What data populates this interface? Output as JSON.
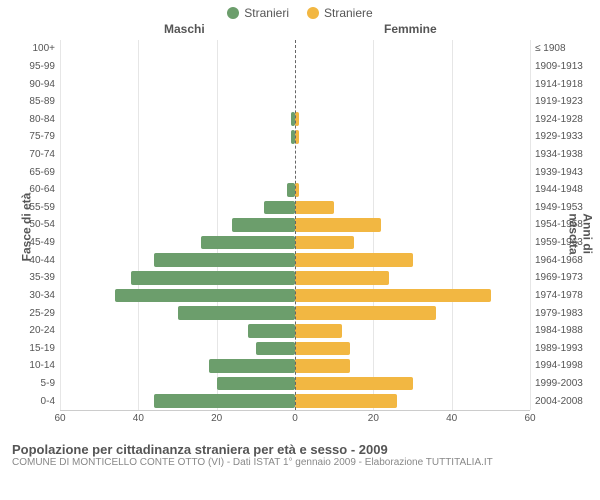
{
  "legend": {
    "male": "Stranieri",
    "female": "Straniere"
  },
  "columns": {
    "left": "Maschi",
    "right": "Femmine"
  },
  "axis_titles": {
    "left": "Fasce di età",
    "right": "Anni di nascita"
  },
  "colors": {
    "male": "#6c9e6c",
    "female": "#f2b742",
    "grid": "#e6e6e6",
    "center": "#666666",
    "bg": "#ffffff"
  },
  "x": {
    "max": 60,
    "ticks": [
      60,
      40,
      20,
      0,
      20,
      40,
      60
    ]
  },
  "rows": [
    {
      "age": "100+",
      "year": "≤ 1908",
      "m": 0,
      "f": 0
    },
    {
      "age": "95-99",
      "year": "1909-1913",
      "m": 0,
      "f": 0
    },
    {
      "age": "90-94",
      "year": "1914-1918",
      "m": 0,
      "f": 0
    },
    {
      "age": "85-89",
      "year": "1919-1923",
      "m": 0,
      "f": 0
    },
    {
      "age": "80-84",
      "year": "1924-1928",
      "m": 1,
      "f": 1
    },
    {
      "age": "75-79",
      "year": "1929-1933",
      "m": 1,
      "f": 1
    },
    {
      "age": "70-74",
      "year": "1934-1938",
      "m": 0,
      "f": 0
    },
    {
      "age": "65-69",
      "year": "1939-1943",
      "m": 0,
      "f": 0
    },
    {
      "age": "60-64",
      "year": "1944-1948",
      "m": 2,
      "f": 1
    },
    {
      "age": "55-59",
      "year": "1949-1953",
      "m": 8,
      "f": 10
    },
    {
      "age": "50-54",
      "year": "1954-1958",
      "m": 16,
      "f": 22
    },
    {
      "age": "45-49",
      "year": "1959-1963",
      "m": 24,
      "f": 15
    },
    {
      "age": "40-44",
      "year": "1964-1968",
      "m": 36,
      "f": 30
    },
    {
      "age": "35-39",
      "year": "1969-1973",
      "m": 42,
      "f": 24
    },
    {
      "age": "30-34",
      "year": "1974-1978",
      "m": 46,
      "f": 50
    },
    {
      "age": "25-29",
      "year": "1979-1983",
      "m": 30,
      "f": 36
    },
    {
      "age": "20-24",
      "year": "1984-1988",
      "m": 12,
      "f": 12
    },
    {
      "age": "15-19",
      "year": "1989-1993",
      "m": 10,
      "f": 14
    },
    {
      "age": "10-14",
      "year": "1994-1998",
      "m": 22,
      "f": 14
    },
    {
      "age": "5-9",
      "year": "1999-2003",
      "m": 20,
      "f": 30
    },
    {
      "age": "0-4",
      "year": "2004-2008",
      "m": 36,
      "f": 26
    }
  ],
  "footer": {
    "title": "Popolazione per cittadinanza straniera per età e sesso - 2009",
    "subtitle": "COMUNE DI MONTICELLO CONTE OTTO (VI) - Dati ISTAT 1° gennaio 2009 - Elaborazione TUTTITALIA.IT"
  }
}
